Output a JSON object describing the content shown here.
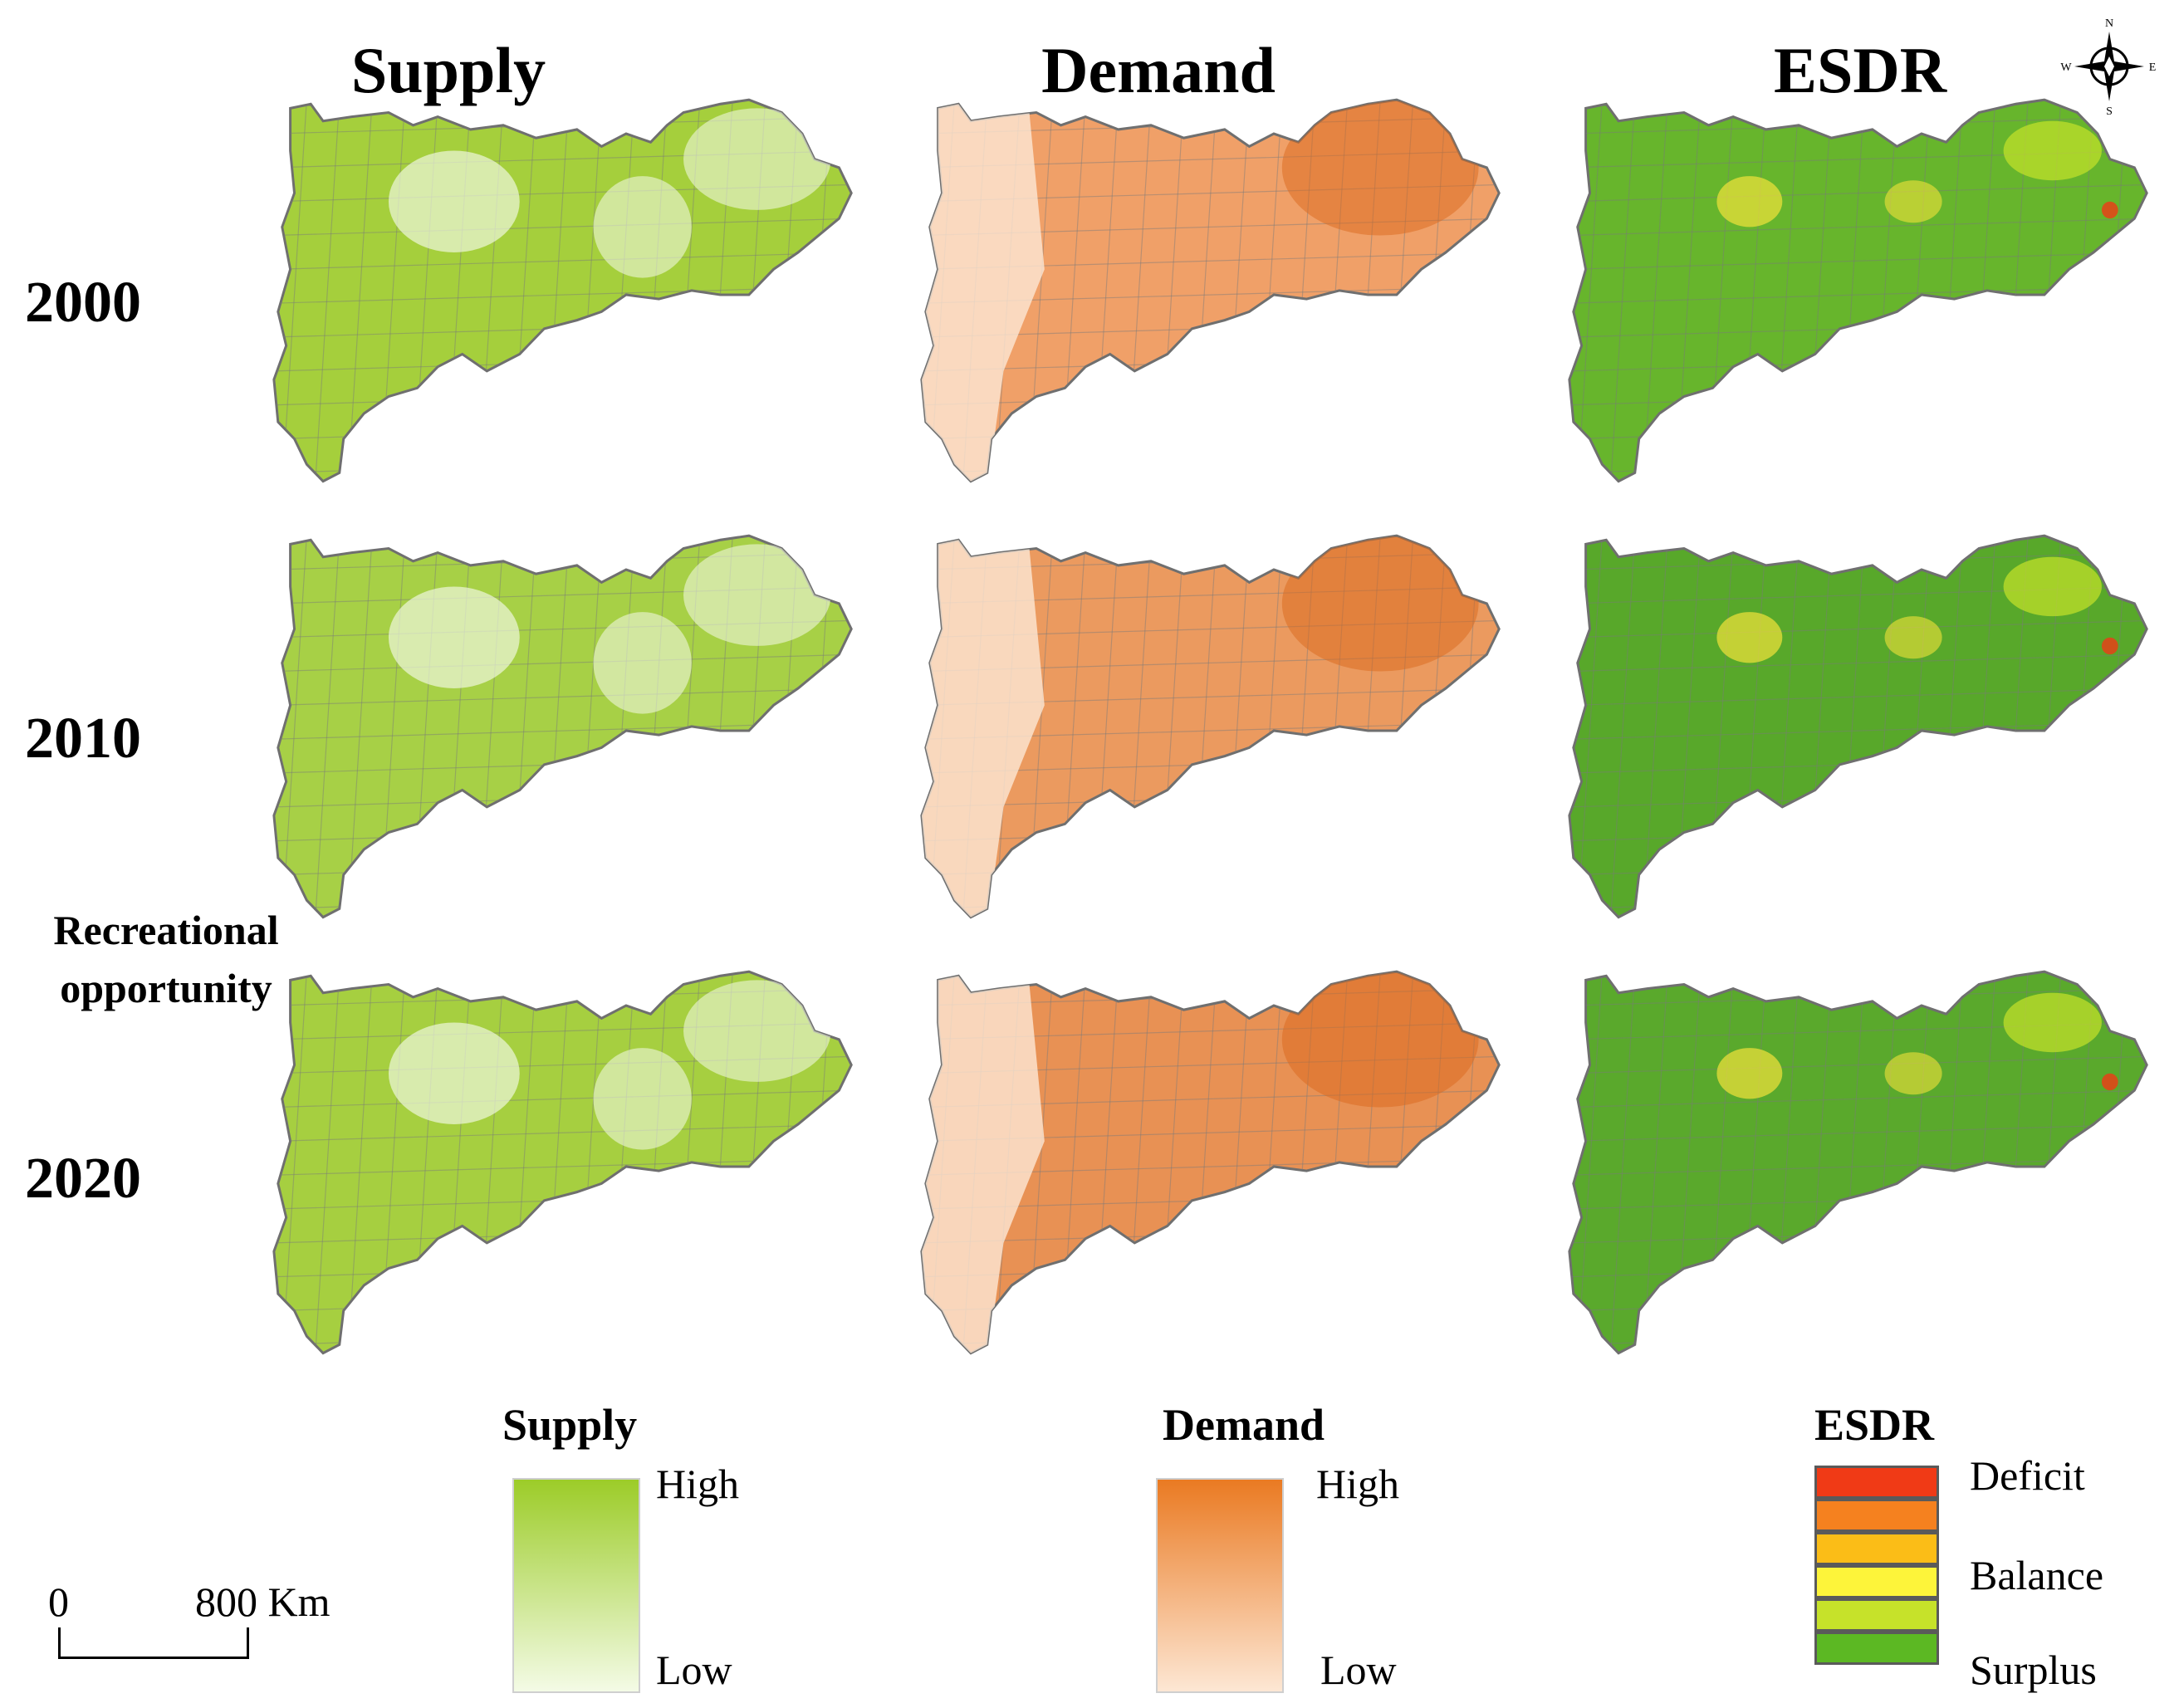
{
  "columns": {
    "supply": "Supply",
    "demand": "Demand",
    "esdr": "ESDR"
  },
  "years": [
    "2000",
    "2010",
    "2020"
  ],
  "side_label": {
    "line1": "Recreational",
    "line2": "opportunity"
  },
  "legends": {
    "supply": {
      "title": "Supply",
      "high": "High",
      "low": "Low",
      "colors": [
        "#9ccc28",
        "#f4fbe6"
      ]
    },
    "demand": {
      "title": "Demand",
      "high": "High",
      "low": "Low",
      "colors": [
        "#ea7a22",
        "#fde7d4"
      ]
    },
    "esdr": {
      "title": "ESDR",
      "classes": [
        "Deficit",
        "",
        "",
        "Balance",
        "",
        "Surplus"
      ],
      "colors": [
        "#f03a16",
        "#f5811f",
        "#fbbd17",
        "#fdf43a",
        "#c6e22a",
        "#5cb823"
      ],
      "labels": {
        "deficit": "Deficit",
        "balance": "Balance",
        "surplus": "Surplus"
      }
    }
  },
  "scale_bar": {
    "start": "0",
    "end": "800 Km"
  },
  "compass": {
    "n": "N",
    "s": "S",
    "e": "E",
    "w": "W"
  },
  "map_fills": {
    "supply": [
      "#a5cf3c",
      "#a7d046",
      "#a6cf40"
    ],
    "demand": [
      "#f0a068",
      "#eb9a5f",
      "#e89154"
    ],
    "esdr": [
      "#67b52c",
      "#58a82a",
      "#5aa92c"
    ]
  }
}
